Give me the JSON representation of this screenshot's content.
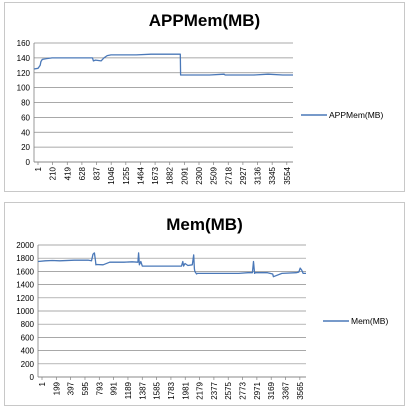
{
  "chart_data": [
    {
      "type": "line",
      "title": "APPMem(MB)",
      "xlabel": "",
      "ylabel": "",
      "legend": "right",
      "grid": true,
      "x_range": [
        1,
        3700
      ],
      "ylim": [
        0,
        160
      ],
      "y_ticks": [
        0,
        20,
        40,
        60,
        80,
        100,
        120,
        140,
        160
      ],
      "x_tick_labels": [
        "1",
        "210",
        "419",
        "628",
        "837",
        "1046",
        "1255",
        "1464",
        "1673",
        "1882",
        "2091",
        "2300",
        "2509",
        "2718",
        "2927",
        "3136",
        "3345",
        "3554"
      ],
      "series": [
        {
          "name": "APPMem(MB)",
          "color": "#4a78b8",
          "x": [
            1,
            60,
            90,
            100,
            120,
            180,
            260,
            300,
            420,
            560,
            837,
            850,
            880,
            960,
            1000,
            1046,
            1100,
            1255,
            1464,
            1673,
            1882,
            2080,
            2091,
            2095,
            2300,
            2509,
            2718,
            2730,
            2927,
            3136,
            3345,
            3554,
            3700
          ],
          "y": [
            125,
            126,
            130,
            135,
            138,
            139,
            140,
            140,
            140,
            140,
            140,
            136,
            137,
            136,
            140,
            143,
            144,
            144,
            144,
            145,
            145,
            145,
            145,
            117,
            117,
            117,
            118,
            117,
            117,
            117,
            118,
            117,
            117
          ]
        }
      ]
    },
    {
      "type": "line",
      "title": "Mem(MB)",
      "xlabel": "",
      "ylabel": "",
      "legend": "right",
      "grid": true,
      "x_range": [
        1,
        3700
      ],
      "ylim": [
        0,
        2000
      ],
      "y_ticks": [
        0,
        200,
        400,
        600,
        800,
        1000,
        1200,
        1400,
        1600,
        1800,
        2000
      ],
      "x_tick_labels": [
        "1",
        "199",
        "397",
        "595",
        "793",
        "991",
        "1189",
        "1387",
        "1585",
        "1783",
        "1981",
        "2179",
        "2377",
        "2575",
        "2773",
        "2971",
        "3169",
        "3367",
        "3565"
      ],
      "series": [
        {
          "name": "Mem(MB)",
          "color": "#4a78b8",
          "x": [
            1,
            100,
            200,
            300,
            500,
            700,
            740,
            760,
            780,
            795,
            800,
            810,
            900,
            991,
            1189,
            1300,
            1380,
            1390,
            1400,
            1420,
            1440,
            1600,
            1783,
            1981,
            2000,
            2010,
            2030,
            2070,
            2130,
            2150,
            2160,
            2165,
            2190,
            2200,
            2377,
            2575,
            2773,
            2900,
            2960,
            2975,
            2990,
            3000,
            3169,
            3240,
            3250,
            3367,
            3565,
            3600,
            3620,
            3640,
            3660,
            3700
          ],
          "y": [
            1750,
            1760,
            1765,
            1760,
            1770,
            1770,
            1760,
            1860,
            1880,
            1760,
            1700,
            1705,
            1700,
            1740,
            1740,
            1745,
            1740,
            1880,
            1700,
            1750,
            1680,
            1680,
            1680,
            1680,
            1750,
            1680,
            1720,
            1690,
            1700,
            1850,
            1640,
            1600,
            1560,
            1570,
            1570,
            1570,
            1570,
            1580,
            1580,
            1750,
            1570,
            1580,
            1580,
            1560,
            1520,
            1570,
            1580,
            1590,
            1650,
            1620,
            1570,
            1570
          ]
        }
      ]
    }
  ]
}
